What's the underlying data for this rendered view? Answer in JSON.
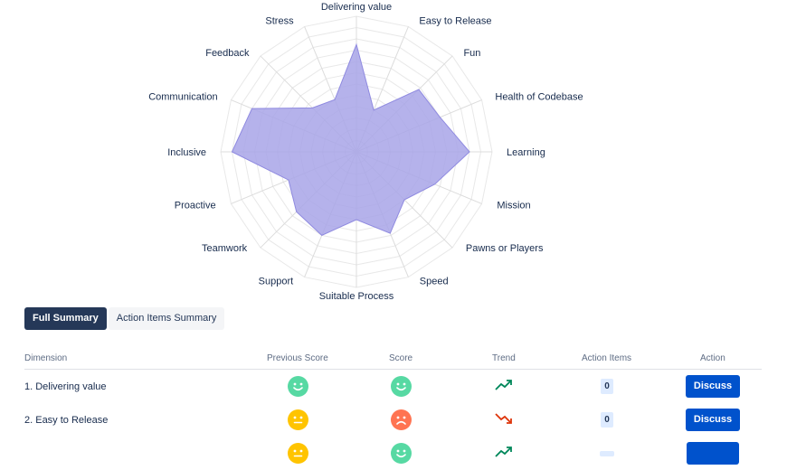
{
  "chart_data": {
    "type": "radar",
    "axes": [
      "Delivering value",
      "Easy to Release",
      "Fun",
      "Health of Codebase",
      "Learning",
      "Mission",
      "Pawns or Players",
      "Speed",
      "Suitable Process",
      "Support",
      "Teamwork",
      "Proactive",
      "Inclusive",
      "Communication",
      "Feedback",
      "Stress"
    ],
    "values": [
      9.5,
      4.0,
      7.8,
      8.0,
      10.0,
      7.5,
      6.0,
      7.8,
      6.0,
      8.0,
      7.5,
      6.5,
      11.0,
      10.0,
      5.5,
      5.0
    ],
    "max": 12,
    "fill_color": "#a8a4e8",
    "stroke_color": "#8f8ae0"
  },
  "tabs": {
    "full_summary": "Full Summary",
    "action_items_summary": "Action Items Summary"
  },
  "table": {
    "headers": {
      "dimension": "Dimension",
      "previous_score": "Previous Score",
      "score": "Score",
      "trend": "Trend",
      "action_items": "Action Items",
      "action": "Action"
    },
    "rows": [
      {
        "dimension": "1. Delivering value",
        "previous_face": "happy",
        "previous_color": "#57d9a3",
        "score_face": "happy",
        "score_color": "#57d9a3",
        "trend": "up",
        "trend_color": "#00875a",
        "action_items": "0",
        "action": "Discuss"
      },
      {
        "dimension": "2. Easy to Release",
        "previous_face": "neutral",
        "previous_color": "#ffc400",
        "score_face": "sad",
        "score_color": "#ff7452",
        "trend": "down",
        "trend_color": "#de350b",
        "action_items": "0",
        "action": "Discuss"
      },
      {
        "dimension": "",
        "previous_face": "neutral",
        "previous_color": "#ffc400",
        "score_face": "happy",
        "score_color": "#57d9a3",
        "trend": "up",
        "trend_color": "#00875a",
        "action_items": "",
        "action": ""
      }
    ]
  }
}
